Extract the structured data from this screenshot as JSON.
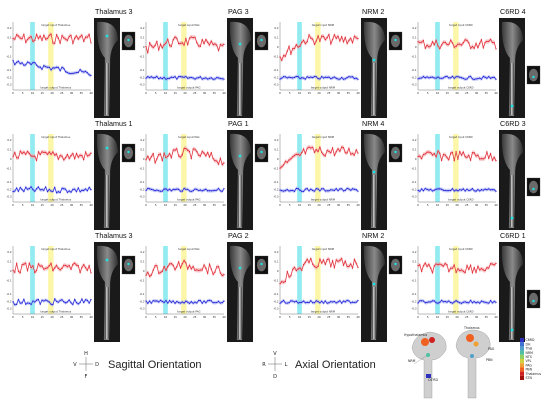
{
  "figure": {
    "rows": [
      [
        {
          "region": "Thalamus 3",
          "input_label": "target input Thalamus",
          "output_label": "target output Thalamus"
        },
        {
          "region": "PAG 3",
          "input_label": "target input PAG",
          "output_label": "target output PAG"
        },
        {
          "region": "NRM 2",
          "input_label": "target input NRM",
          "output_label": "target output NRM"
        },
        {
          "region": "C6RD 4",
          "input_label": "target input C6RD",
          "output_label": "target output C6RD"
        }
      ],
      [
        {
          "region": "Thalamus 1",
          "input_label": "target input Thalamus",
          "output_label": "target output Thalamus"
        },
        {
          "region": "PAG 1",
          "input_label": "target input PAG",
          "output_label": "target output PAG"
        },
        {
          "region": "NRM 4",
          "input_label": "target input NRM",
          "output_label": "target output NRM"
        },
        {
          "region": "C6RD 3",
          "input_label": "target input C6RD",
          "output_label": "target output C6RD"
        }
      ],
      [
        {
          "region": "Thalamus 3",
          "input_label": "target input Thalamus",
          "output_label": "target output Thalamus"
        },
        {
          "region": "PAG 2",
          "input_label": "target input PAG",
          "output_label": "target output PAG"
        },
        {
          "region": "NRM 2",
          "input_label": "target input NRM",
          "output_label": "target output NRM"
        },
        {
          "region": "C6RD 1",
          "input_label": "target input C6RD",
          "output_label": "target output C6RD"
        }
      ]
    ],
    "x_ticks": [
      "0",
      "5",
      "10",
      "15",
      "20",
      "25",
      "30",
      "35",
      "40"
    ],
    "y_ticks_top": [
      "0.2",
      "0.1",
      "0",
      "-0.1"
    ],
    "y_ticks_bottom": [
      "-0.1",
      "-0.2",
      "-0.3"
    ],
    "colors": {
      "input": "#e0303a",
      "output": "#2a2ad8",
      "stim_cyan": "#7fe8ee",
      "stim_yellow": "#fbf59a"
    },
    "orientation": {
      "sagittal_label": "Sagittal Orientation",
      "axial_label": "Axial Orientation",
      "sagittal_compass": {
        "top": "H",
        "bottom": "F",
        "left": "V",
        "right": "D"
      },
      "axial_compass": {
        "top": "V",
        "bottom": "D",
        "left": "R",
        "right": "L"
      }
    },
    "anatomy": {
      "legend": [
        "C6RD",
        "DH",
        "Thal",
        "NRM",
        "NTS",
        "VPL",
        "PAG",
        "PBN",
        "Thalamus",
        "STN"
      ],
      "legend_colors": [
        "#2f2fbf",
        "#3f6fd0",
        "#4fa0c8",
        "#4fc0a0",
        "#8fd060",
        "#d0d040",
        "#f0a030",
        "#f06020",
        "#d02020",
        "#a01010"
      ],
      "callouts": [
        "Thalamus",
        "Hypothalamus",
        "PAG",
        "PBN",
        "NRM",
        "C6 RD"
      ]
    }
  }
}
